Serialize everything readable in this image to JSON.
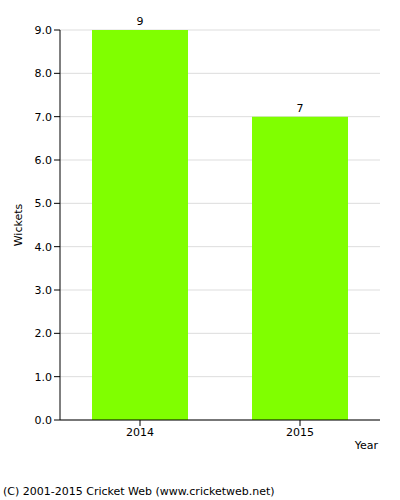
{
  "chart_data": {
    "type": "bar",
    "categories": [
      "2014",
      "2015"
    ],
    "values": [
      9,
      7
    ],
    "color": "#80ff00",
    "y_label": "Wickets",
    "x_label": "Year",
    "ylim": [
      0,
      9
    ],
    "yticks": [
      {
        "value": 0,
        "label": "0.0"
      },
      {
        "value": 1,
        "label": "1.0"
      },
      {
        "value": 2,
        "label": "2.0"
      },
      {
        "value": 3,
        "label": "3.0"
      },
      {
        "value": 4,
        "label": "4.0"
      },
      {
        "value": 5,
        "label": "5.0"
      },
      {
        "value": 6,
        "label": "6.0"
      },
      {
        "value": 7,
        "label": "7.0"
      },
      {
        "value": 8,
        "label": "8.0"
      },
      {
        "value": 9,
        "label": "9.0"
      }
    ],
    "grid": true,
    "data_labels": true,
    "annotations": [
      "(C) 2001-2015 Cricket Web (www.cricketweb.net)"
    ]
  }
}
